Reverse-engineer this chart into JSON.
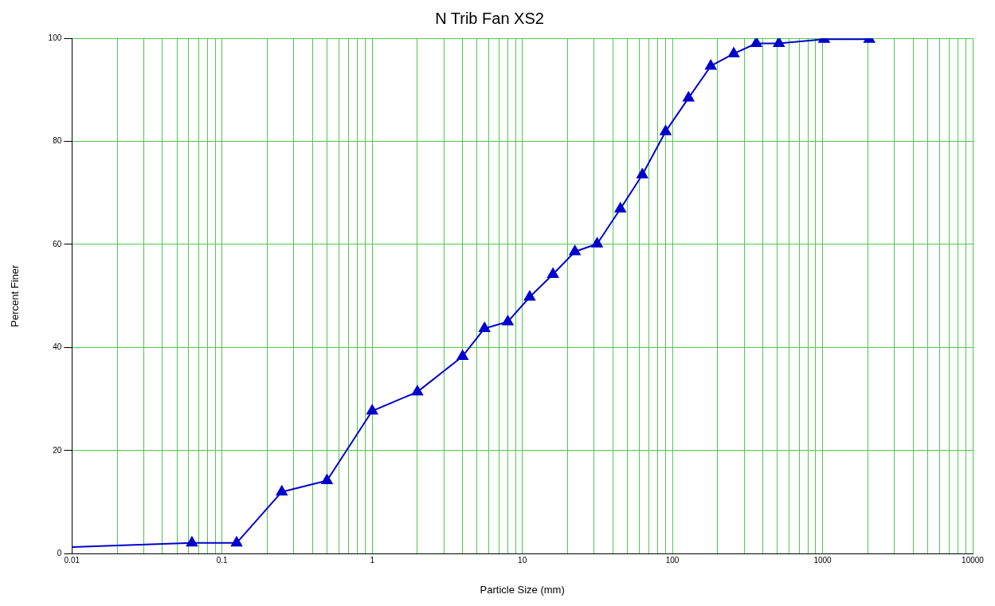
{
  "chart_data": {
    "type": "line",
    "title": "N Trib Fan XS2",
    "xlabel": "Particle Size (mm)",
    "ylabel": "Percent Finer",
    "log": "x",
    "grid": true,
    "legend": false,
    "line_style": "solid",
    "xlim": [
      0.01,
      10000
    ],
    "ylim": [
      0,
      100
    ],
    "xticks": [
      0.01,
      {
        "value": 0.02,
        "label": null
      },
      {
        "value": 0.03,
        "label": null
      },
      {
        "value": 0.04,
        "label": null
      },
      {
        "value": 0.05,
        "label": null
      },
      {
        "value": 0.06,
        "label": null
      },
      {
        "value": 0.07,
        "label": null
      },
      {
        "value": 0.08,
        "label": null
      },
      {
        "value": 0.09,
        "label": null
      },
      0.1,
      {
        "value": 0.2,
        "label": null
      },
      {
        "value": 0.3,
        "label": null
      },
      {
        "value": 0.4,
        "label": null
      },
      {
        "value": 0.5,
        "label": null
      },
      {
        "value": 0.6,
        "label": null
      },
      {
        "value": 0.7,
        "label": null
      },
      {
        "value": 0.8,
        "label": null
      },
      {
        "value": 0.9,
        "label": null
      },
      1,
      {
        "value": 2,
        "label": null
      },
      {
        "value": 3,
        "label": null
      },
      {
        "value": 4,
        "label": null
      },
      {
        "value": 5,
        "label": null
      },
      {
        "value": 6,
        "label": null
      },
      {
        "value": 7,
        "label": null
      },
      {
        "value": 8,
        "label": null
      },
      {
        "value": 9,
        "label": null
      },
      10,
      {
        "value": 20,
        "label": null
      },
      {
        "value": 30,
        "label": null
      },
      {
        "value": 40,
        "label": null
      },
      {
        "value": 50,
        "label": null
      },
      {
        "value": 60,
        "label": null
      },
      {
        "value": 70,
        "label": null
      },
      {
        "value": 80,
        "label": null
      },
      {
        "value": 90,
        "label": null
      },
      100,
      {
        "value": 200,
        "label": null
      },
      {
        "value": 300,
        "label": null
      },
      {
        "value": 400,
        "label": null
      },
      {
        "value": 500,
        "label": null
      },
      {
        "value": 600,
        "label": null
      },
      {
        "value": 700,
        "label": null
      },
      {
        "value": 800,
        "label": null
      },
      {
        "value": 900,
        "label": null
      },
      1000,
      {
        "value": 2000,
        "label": null
      },
      {
        "value": 3000,
        "label": null
      },
      {
        "value": 4000,
        "label": null
      },
      {
        "value": 5000,
        "label": null
      },
      {
        "value": 6000,
        "label": null
      },
      {
        "value": 7000,
        "label": null
      },
      {
        "value": 8000,
        "label": null
      },
      {
        "value": 9000,
        "label": null
      },
      10000
    ],
    "yticks": [
      0,
      20,
      40,
      60,
      80,
      100
    ],
    "series": [
      {
        "color": "#0000cc",
        "x": [
          0.01,
          0.063
        ],
        "values": [
          1.3,
          2.1
        ]
      },
      {
        "color": "#0000cc",
        "marker": "triangle",
        "x": [
          0.063,
          0.125,
          0.25,
          0.5,
          1,
          2,
          4,
          5.6,
          8,
          11.2,
          16,
          22.4,
          31.5,
          45,
          63,
          90,
          128,
          180,
          256,
          362,
          512,
          1024,
          2048
        ],
        "values": [
          2.1,
          2.1,
          12.0,
          14.2,
          27.7,
          31.4,
          38.3,
          43.7,
          45.0,
          49.8,
          54.2,
          58.6,
          60.1,
          66.9,
          73.5,
          81.9,
          88.4,
          94.6,
          97.0,
          99.0,
          99.0,
          99.8,
          99.8
        ]
      }
    ]
  }
}
